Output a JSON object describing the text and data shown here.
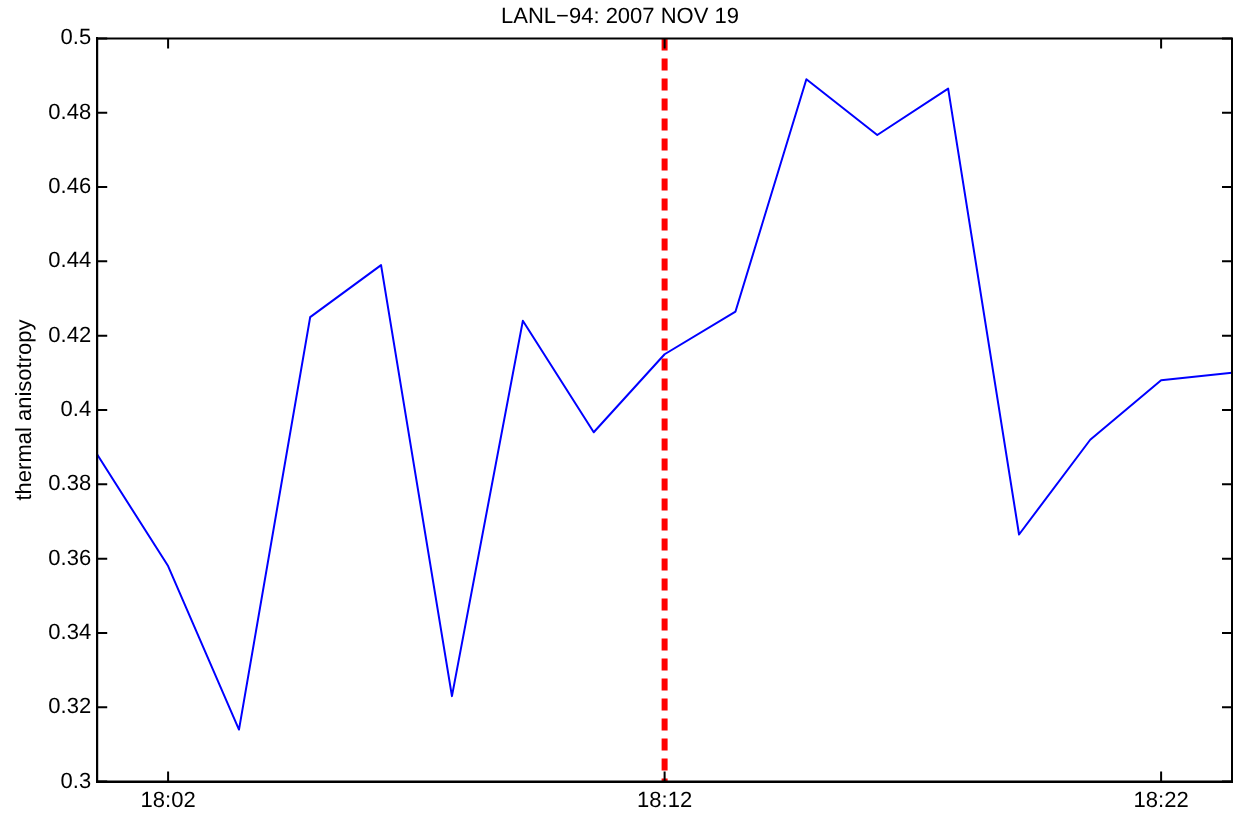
{
  "chart_data": {
    "type": "line",
    "title": "LANL−94: 2007 NOV 19",
    "ylabel": "thermal anisotropy",
    "x": [
      18.0095,
      18.0333,
      18.0571,
      18.081,
      18.1048,
      18.1286,
      18.1524,
      18.1762,
      18.2,
      18.2238,
      18.2476,
      18.2714,
      18.2952,
      18.319,
      18.3429,
      18.3667,
      18.3905
    ],
    "series": [
      {
        "color": "#0000ff",
        "values": [
          0.388,
          0.358,
          0.314,
          0.425,
          0.439,
          0.323,
          0.424,
          0.394,
          0.415,
          0.4265,
          0.489,
          0.474,
          0.4865,
          0.3665,
          0.392,
          0.408,
          0.41
        ]
      }
    ],
    "xlim": [
      18.0095,
      18.3905
    ],
    "xticks": [
      {
        "value": 18.0333,
        "label": "18:02"
      },
      {
        "value": 18.2,
        "label": "18:12"
      },
      {
        "value": 18.3667,
        "label": "18:22"
      }
    ],
    "ylim": [
      0.3,
      0.5
    ],
    "yticks": [
      0.3,
      0.32,
      0.34,
      0.36,
      0.38,
      0.4,
      0.42,
      0.44,
      0.46,
      0.48,
      0.5
    ],
    "ref_lines": [
      {
        "axis": "x",
        "value": 18.2,
        "color": "#ff0000",
        "line_style": "dashed"
      }
    ],
    "grid": false,
    "legend": false
  }
}
